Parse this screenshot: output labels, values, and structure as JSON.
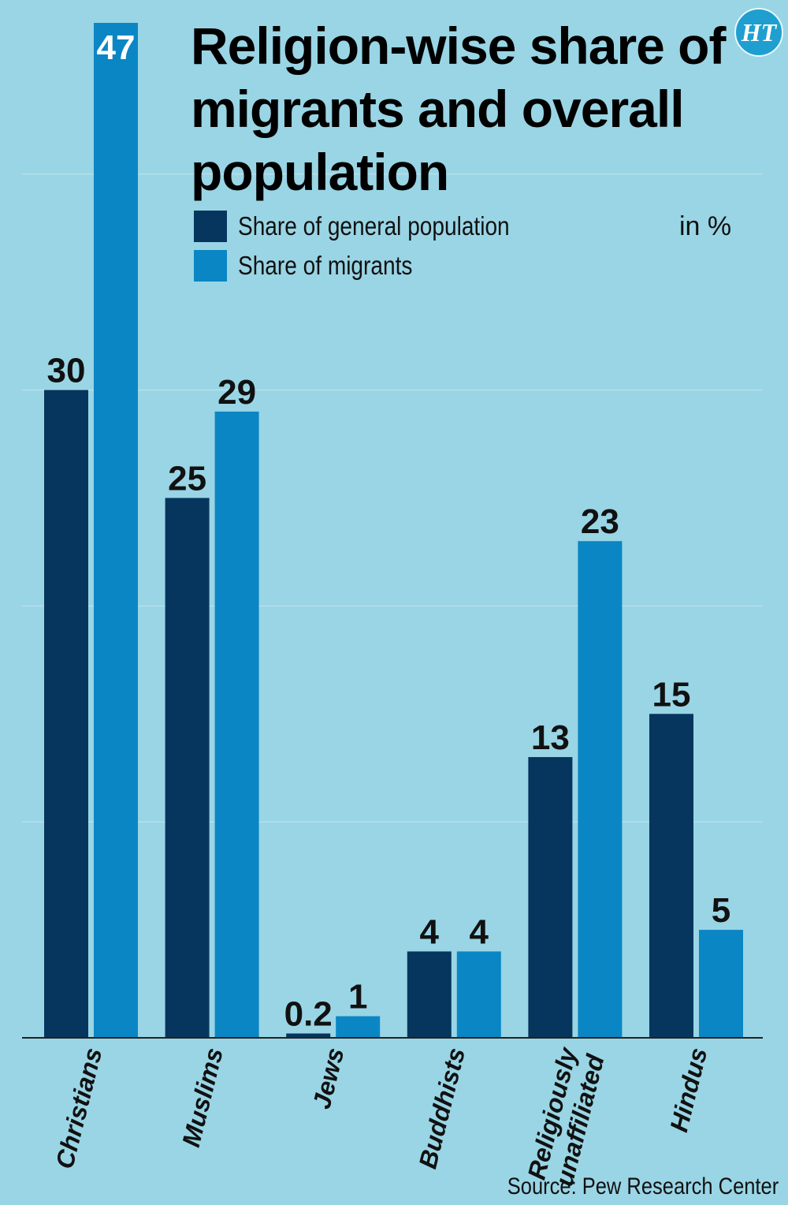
{
  "chart_data": {
    "type": "bar",
    "title": "Religion-wise share of migrants and overall population",
    "unit": "in %",
    "categories": [
      "Christians",
      "Muslims",
      "Jews",
      "Buddhists",
      "Religiously unaffiliated",
      "Hindus"
    ],
    "category_lines": [
      [
        "Christians"
      ],
      [
        "Muslims"
      ],
      [
        "Jews"
      ],
      [
        "Buddhists"
      ],
      [
        "Religiously",
        "unaffiliated"
      ],
      [
        "Hindus"
      ]
    ],
    "series": [
      {
        "name": "Share of general population",
        "color": "#06365d",
        "values": [
          30,
          25,
          0.2,
          4,
          13,
          15
        ]
      },
      {
        "name": "Share of migrants",
        "color": "#0b86c4",
        "values": [
          47,
          29,
          1,
          4,
          23,
          5
        ]
      }
    ],
    "ylim": [
      0,
      47
    ],
    "grid": true,
    "legend_position": "top-left",
    "source": "Source: Pew Research Center"
  },
  "branding": {
    "logo_text": "HT"
  }
}
